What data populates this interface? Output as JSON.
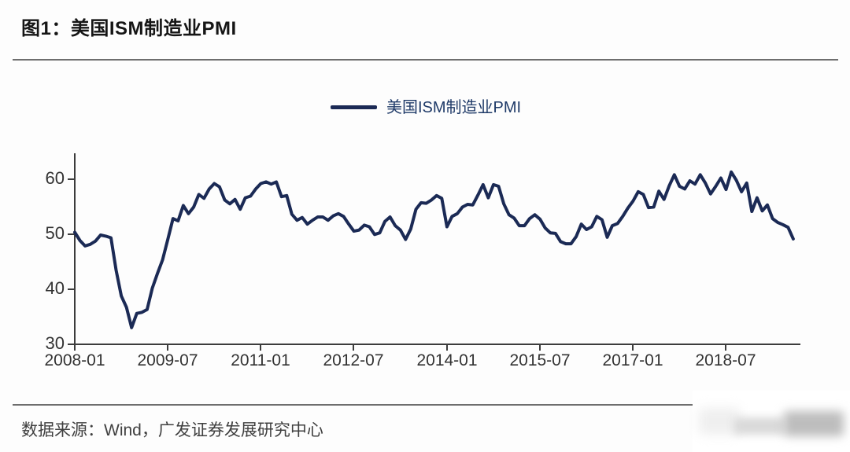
{
  "figure": {
    "title": "图1：美国ISM制造业PMI"
  },
  "legend": {
    "label": "美国ISM制造业PMI"
  },
  "source": {
    "text": "数据来源：Wind，广发证券发展研究中心"
  },
  "colors": {
    "line": "#1b2a55",
    "legend_text": "#1f3a68",
    "axis": "#3c3c3c",
    "tick_label": "#333333",
    "separator": "#6e6e6e",
    "title_text": "#151515",
    "source_text": "#404040"
  },
  "chart_data": {
    "type": "line",
    "title": "图1：美国ISM制造业PMI",
    "series_name": "美国ISM制造业PMI",
    "xlabel": "",
    "ylabel": "",
    "grid": false,
    "legend_position": "top-center",
    "x_start": "2008-01",
    "x_end": "2019-08",
    "x_freq": "monthly",
    "x_ticks": [
      "2008-01",
      "2009-07",
      "2011-01",
      "2012-07",
      "2014-01",
      "2015-07",
      "2017-01",
      "2018-07"
    ],
    "y_ticks": [
      30,
      40,
      50,
      60
    ],
    "ylim": [
      30,
      65
    ],
    "values": [
      50.3,
      48.8,
      47.8,
      48.1,
      48.7,
      49.8,
      49.6,
      49.3,
      43.4,
      38.7,
      36.6,
      32.9,
      35.5,
      35.7,
      36.2,
      40.1,
      42.8,
      45.3,
      49.0,
      52.8,
      52.4,
      55.2,
      53.7,
      54.9,
      57.2,
      56.5,
      58.2,
      59.2,
      58.6,
      56.2,
      55.5,
      56.3,
      54.5,
      56.6,
      56.9,
      58.2,
      59.2,
      59.5,
      59.1,
      59.5,
      56.8,
      57.0,
      53.6,
      52.5,
      53.0,
      51.8,
      52.5,
      53.1,
      53.1,
      52.5,
      53.3,
      53.7,
      53.2,
      51.8,
      50.5,
      50.7,
      51.6,
      51.3,
      49.9,
      50.2,
      52.3,
      53.1,
      51.5,
      50.7,
      49.0,
      50.9,
      54.5,
      55.7,
      55.6,
      56.2,
      57.0,
      56.5,
      51.3,
      53.2,
      53.7,
      54.9,
      55.4,
      55.3,
      57.1,
      59.0,
      56.6,
      59.0,
      58.7,
      55.5,
      53.5,
      52.9,
      51.5,
      51.5,
      52.8,
      53.5,
      52.7,
      51.1,
      50.2,
      50.1,
      48.6,
      48.2,
      48.2,
      49.5,
      51.8,
      50.8,
      51.3,
      53.2,
      52.6,
      49.4,
      51.5,
      51.9,
      53.2,
      54.7,
      56.0,
      57.7,
      57.2,
      54.8,
      54.9,
      57.8,
      56.3,
      58.8,
      60.8,
      58.7,
      58.2,
      59.7,
      59.1,
      60.8,
      59.3,
      57.3,
      58.7,
      60.2,
      58.1,
      61.3,
      59.8,
      57.7,
      59.3,
      54.1,
      56.6,
      54.2,
      55.3,
      52.8,
      52.1,
      51.7,
      51.2,
      49.1
    ]
  }
}
